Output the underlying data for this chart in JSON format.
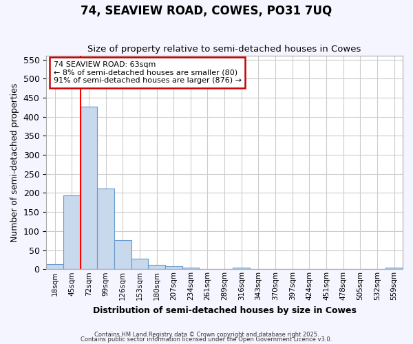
{
  "title": "74, SEAVIEW ROAD, COWES, PO31 7UQ",
  "subtitle": "Size of property relative to semi-detached houses in Cowes",
  "xlabel": "Distribution of semi-detached houses by size in Cowes",
  "ylabel": "Number of semi-detached properties",
  "categories": [
    "18sqm",
    "45sqm",
    "72sqm",
    "99sqm",
    "126sqm",
    "153sqm",
    "180sqm",
    "207sqm",
    "234sqm",
    "261sqm",
    "289sqm",
    "316sqm",
    "343sqm",
    "370sqm",
    "397sqm",
    "424sqm",
    "451sqm",
    "478sqm",
    "505sqm",
    "532sqm",
    "559sqm"
  ],
  "values": [
    13,
    193,
    427,
    211,
    77,
    27,
    11,
    8,
    4,
    0,
    0,
    4,
    0,
    0,
    0,
    0,
    0,
    0,
    0,
    0,
    4
  ],
  "bar_color": "#c8d8ed",
  "bar_edge_color": "#6699cc",
  "grid_color": "#cccccc",
  "bg_color": "#ffffff",
  "fig_bg_color": "#f5f5ff",
  "red_line_x": 1.5,
  "annotation_text": "74 SEAVIEW ROAD: 63sqm\n← 8% of semi-detached houses are smaller (80)\n91% of semi-detached houses are larger (876) →",
  "annotation_box_color": "#ffffff",
  "annotation_border_color": "#cc0000",
  "ylim": [
    0,
    560
  ],
  "yticks": [
    0,
    50,
    100,
    150,
    200,
    250,
    300,
    350,
    400,
    450,
    500,
    550
  ],
  "footnote1": "Contains HM Land Registry data © Crown copyright and database right 2025.",
  "footnote2": "Contains public sector information licensed under the Open Government Licence v3.0."
}
